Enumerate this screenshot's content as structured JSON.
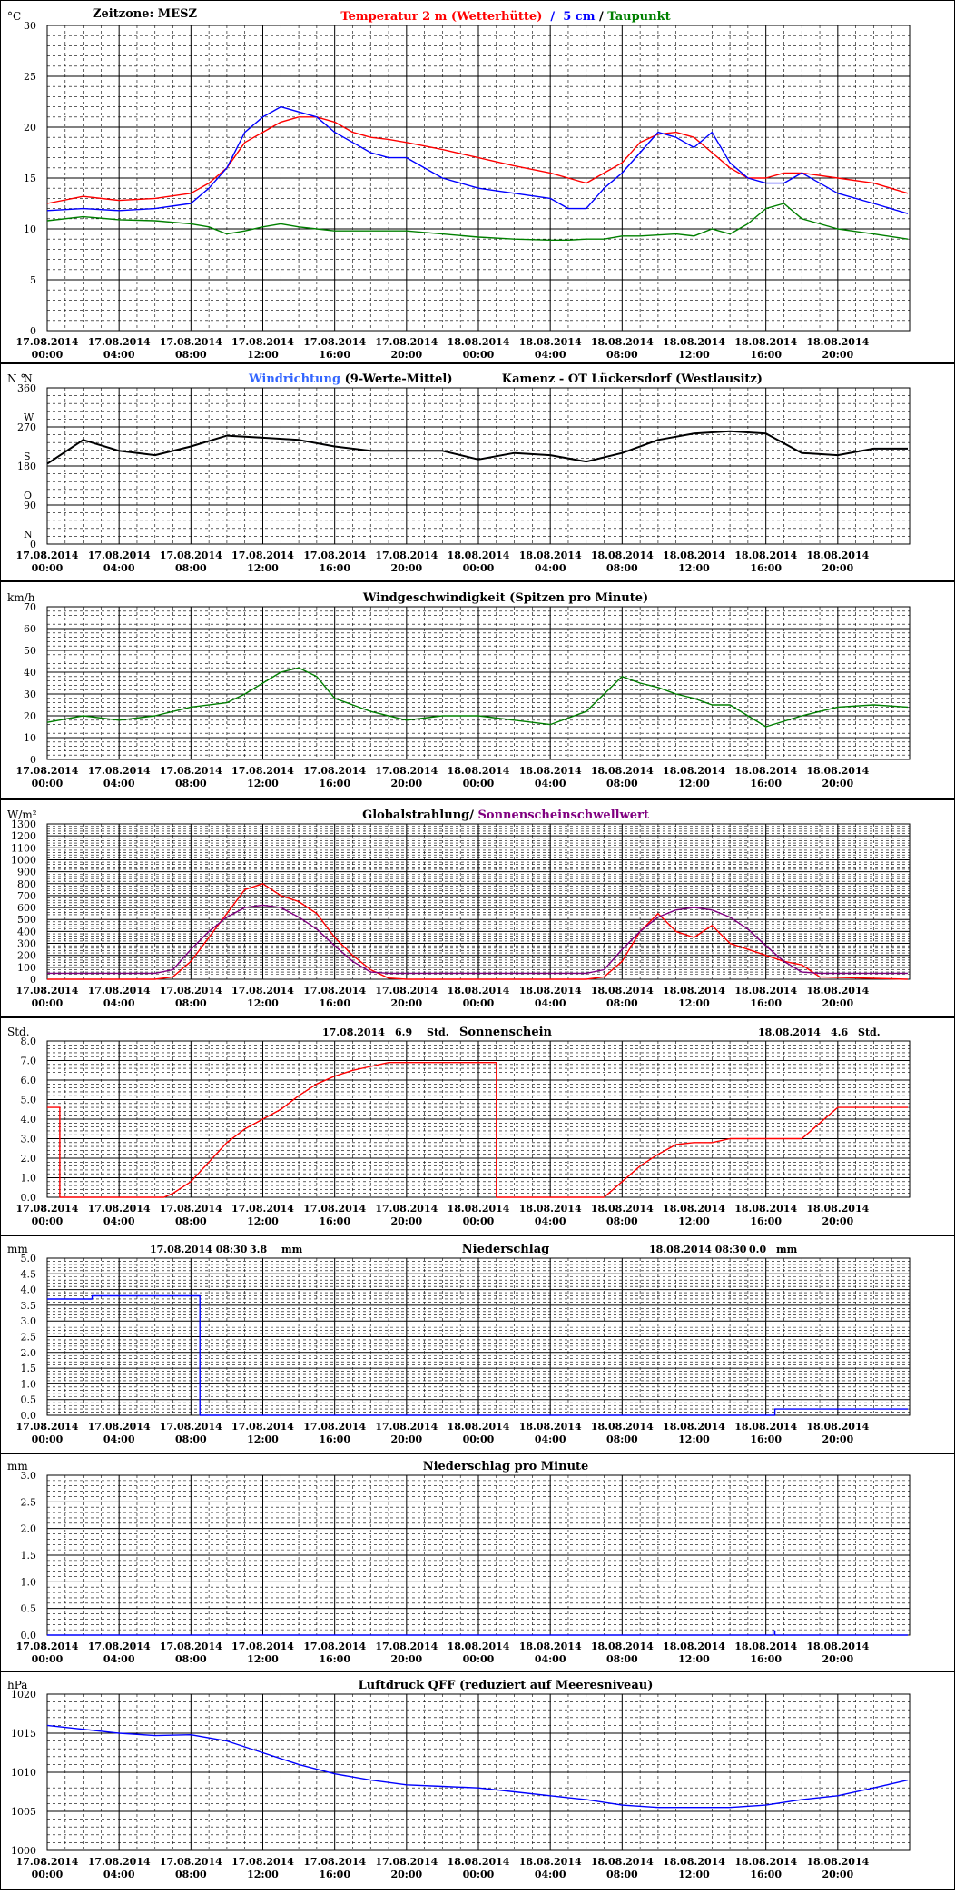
{
  "x_ticks": [
    {
      "date": "17.08.2014",
      "time": "00:00"
    },
    {
      "date": "17.08.2014",
      "time": "04:00"
    },
    {
      "date": "17.08.2014",
      "time": "08:00"
    },
    {
      "date": "17.08.2014",
      "time": "12:00"
    },
    {
      "date": "17.08.2014",
      "time": "16:00"
    },
    {
      "date": "17.08.2014",
      "time": "20:00"
    },
    {
      "date": "18.08.2014",
      "time": "00:00"
    },
    {
      "date": "18.08.2014",
      "time": "04:00"
    },
    {
      "date": "18.08.2014",
      "time": "08:00"
    },
    {
      "date": "18.08.2014",
      "time": "12:00"
    },
    {
      "date": "18.08.2014",
      "time": "16:00"
    },
    {
      "date": "18.08.2014",
      "time": "20:00"
    }
  ],
  "chart_data": [
    {
      "id": "temperature",
      "type": "line",
      "y_unit": "°C",
      "header_left": "Zeitzone: MESZ",
      "title_parts": [
        {
          "text": "Temperatur 2 m (Wetterhütte)",
          "color": "#ff0000"
        },
        {
          "text": "  /  ",
          "color": "#0000ff"
        },
        {
          "text": "5 cm",
          "color": "#0000ff"
        },
        {
          "text": " / ",
          "color": "#000000"
        },
        {
          "text": "Taupunkt",
          "color": "#008000"
        }
      ],
      "ylim": [
        0,
        30
      ],
      "y_ticks": [
        "0",
        "5",
        "10",
        "15",
        "20",
        "25",
        "30"
      ],
      "x_hours": [
        0,
        2,
        4,
        6,
        8,
        9,
        10,
        11,
        12,
        13,
        14,
        15,
        16,
        17,
        18,
        19,
        20,
        22,
        24,
        26,
        28,
        29,
        30,
        31,
        32,
        33,
        34,
        35,
        36,
        37,
        38,
        39,
        40,
        41,
        42,
        44,
        46,
        47.9
      ],
      "series": [
        {
          "name": "Temperatur 2 m (Wetterhütte)",
          "color": "#ff0000",
          "values": [
            12.5,
            13.2,
            12.8,
            13.0,
            13.5,
            14.5,
            16.0,
            18.5,
            19.5,
            20.5,
            21.0,
            21.0,
            20.5,
            19.5,
            19.0,
            18.8,
            18.5,
            17.8,
            17.0,
            16.2,
            15.5,
            15.0,
            14.5,
            15.5,
            16.5,
            18.5,
            19.3,
            19.5,
            19.0,
            17.5,
            16.0,
            15.0,
            15.0,
            15.5,
            15.5,
            15.0,
            14.5,
            13.5
          ]
        },
        {
          "name": "5 cm",
          "color": "#0000ff",
          "values": [
            11.8,
            12.0,
            11.8,
            12.0,
            12.5,
            14.0,
            16.0,
            19.5,
            21.0,
            22.0,
            21.5,
            21.0,
            19.5,
            18.5,
            17.5,
            17.0,
            17.0,
            15.0,
            14.0,
            13.5,
            13.0,
            12.0,
            12.0,
            14.0,
            15.5,
            17.5,
            19.5,
            19.0,
            18.0,
            19.5,
            16.5,
            15.0,
            14.5,
            14.5,
            15.5,
            13.5,
            12.5,
            11.5
          ]
        },
        {
          "name": "Taupunkt",
          "color": "#008000",
          "values": [
            10.8,
            11.2,
            10.9,
            10.8,
            10.5,
            10.2,
            9.5,
            9.8,
            10.2,
            10.5,
            10.2,
            10.0,
            9.8,
            9.8,
            9.8,
            9.8,
            9.8,
            9.5,
            9.2,
            9.0,
            8.9,
            8.9,
            9.0,
            9.0,
            9.3,
            9.3,
            9.4,
            9.5,
            9.3,
            10.0,
            9.5,
            10.5,
            12.0,
            12.5,
            11.0,
            10.0,
            9.5,
            9.0
          ]
        }
      ]
    },
    {
      "id": "wind_direction",
      "type": "line",
      "y_unit": "N °",
      "title_parts": [
        {
          "text": "Windrichtung",
          "color": "#3366ff"
        },
        {
          "text": " (9-Werte-Mittel)",
          "color": "#000000"
        },
        {
          "text": "            Kamenz - OT Lückersdorf (Westlausitz)",
          "color": "#000000"
        }
      ],
      "ylim": [
        0,
        360
      ],
      "y_ticks": [
        "0",
        "90",
        "180",
        "270",
        "360"
      ],
      "compass": [
        "N",
        "O",
        "S",
        "W",
        "N"
      ],
      "x_hours": [
        0,
        2,
        4,
        6,
        8,
        10,
        12,
        14,
        16,
        18,
        20,
        22,
        24,
        26,
        28,
        30,
        32,
        34,
        36,
        38,
        40,
        42,
        44,
        46,
        47.9
      ],
      "series": [
        {
          "name": "Windrichtung",
          "color": "#3366ff",
          "values": [
            185,
            240,
            215,
            205,
            225,
            250,
            245,
            240,
            225,
            215,
            215,
            215,
            195,
            210,
            205,
            190,
            210,
            240,
            255,
            260,
            255,
            210,
            205,
            220,
            220
          ]
        },
        {
          "name": "9-Werte-Mittel",
          "color": "#000000",
          "values": [
            185,
            240,
            215,
            205,
            225,
            250,
            245,
            240,
            225,
            215,
            215,
            215,
            195,
            210,
            205,
            190,
            210,
            240,
            255,
            260,
            255,
            210,
            205,
            220,
            220
          ]
        }
      ]
    },
    {
      "id": "wind_speed",
      "type": "line",
      "y_unit": "km/h",
      "title_parts": [
        {
          "text": "Windgeschwindigkeit (Spitzen pro Minute)",
          "color": "#000000"
        }
      ],
      "ylim": [
        0,
        70
      ],
      "y_ticks": [
        "0",
        "10",
        "20",
        "30",
        "40",
        "50",
        "60",
        "70"
      ],
      "x_hours": [
        0,
        2,
        4,
        6,
        8,
        10,
        11,
        12,
        13,
        14,
        15,
        16,
        17,
        18,
        20,
        22,
        24,
        26,
        28,
        30,
        31,
        32,
        33,
        34,
        35,
        36,
        37,
        38,
        40,
        42,
        44,
        46,
        47.9
      ],
      "series": [
        {
          "name": "Windgeschwindigkeit",
          "color": "#008000",
          "values": [
            17,
            20,
            18,
            20,
            24,
            26,
            30,
            35,
            40,
            42,
            38,
            28,
            25,
            22,
            18,
            20,
            20,
            18,
            16,
            22,
            30,
            38,
            35,
            33,
            30,
            28,
            25,
            25,
            15,
            20,
            24,
            25,
            24
          ]
        }
      ]
    },
    {
      "id": "global_radiation",
      "type": "line",
      "y_unit": "W/m²",
      "title_parts": [
        {
          "text": "Globalstrahlung/ ",
          "color": "#000000"
        },
        {
          "text": "Sonnenscheinschwellwert",
          "color": "#800080"
        }
      ],
      "ylim": [
        0,
        1300
      ],
      "y_ticks": [
        "0",
        "100",
        "200",
        "300",
        "400",
        "500",
        "600",
        "700",
        "800",
        "900",
        "1000",
        "1100",
        "1200",
        "1300"
      ],
      "x_hours": [
        0,
        6,
        7,
        8,
        9,
        10,
        11,
        12,
        13,
        14,
        15,
        16,
        17,
        18,
        19,
        20,
        30,
        31,
        32,
        33,
        34,
        35,
        36,
        37,
        38,
        39,
        40,
        41,
        42,
        43,
        47.9
      ],
      "series": [
        {
          "name": "Globalstrahlung",
          "color": "#ff0000",
          "values": [
            0,
            0,
            20,
            150,
            350,
            550,
            750,
            800,
            700,
            650,
            550,
            350,
            200,
            80,
            10,
            0,
            0,
            20,
            150,
            400,
            550,
            400,
            350,
            450,
            300,
            250,
            200,
            150,
            120,
            20,
            0
          ]
        },
        {
          "name": "Sonnenscheinschwellwert",
          "color": "#800080",
          "values": [
            50,
            50,
            80,
            250,
            400,
            520,
            600,
            620,
            600,
            520,
            420,
            280,
            150,
            60,
            50,
            50,
            50,
            80,
            250,
            400,
            520,
            580,
            600,
            580,
            520,
            420,
            280,
            150,
            60,
            50,
            50
          ]
        }
      ]
    },
    {
      "id": "sunshine",
      "type": "line",
      "y_unit": "Std.",
      "title_parts": [
        {
          "text": "Sonnenschein",
          "color": "#000000"
        }
      ],
      "annotations": [
        {
          "date": "17.08.2014",
          "value": "6.9",
          "unit": "Std."
        },
        {
          "date": "18.08.2014",
          "value": "4.6",
          "unit": "Std."
        }
      ],
      "ylim": [
        0,
        8
      ],
      "y_ticks": [
        "0.0",
        "1.0",
        "2.0",
        "3.0",
        "4.0",
        "5.0",
        "6.0",
        "7.0",
        "8.0"
      ],
      "x_hours": [
        0,
        0.7,
        0.7,
        6.5,
        7.0,
        8.0,
        9.0,
        10.0,
        11.0,
        12.0,
        13.0,
        14.0,
        15.0,
        16.0,
        17.0,
        18.0,
        19.0,
        20.0,
        24.0,
        25.0,
        25.0,
        31.0,
        32.0,
        33.0,
        34.0,
        35.0,
        36.0,
        37.0,
        38.0,
        39.0,
        40.0,
        41.0,
        42.0,
        43.0,
        44.0,
        47.9
      ],
      "series": [
        {
          "name": "Sonnenschein",
          "color": "#ff0000",
          "values": [
            4.6,
            4.6,
            0.0,
            0.0,
            0.2,
            0.8,
            1.8,
            2.8,
            3.5,
            4.0,
            4.5,
            5.2,
            5.8,
            6.2,
            6.5,
            6.7,
            6.9,
            6.9,
            6.9,
            6.9,
            0.0,
            0.0,
            0.8,
            1.6,
            2.2,
            2.7,
            2.8,
            2.8,
            3.0,
            3.0,
            3.0,
            3.0,
            3.0,
            3.8,
            4.6,
            4.6
          ]
        }
      ]
    },
    {
      "id": "precipitation",
      "type": "line",
      "y_unit": "mm",
      "title_parts": [
        {
          "text": "Niederschlag",
          "color": "#000000"
        }
      ],
      "annotations": [
        {
          "date": "17.08.2014 08:30",
          "value": "3.8",
          "unit": "mm"
        },
        {
          "date": "18.08.2014 08:30",
          "value": "0.0",
          "unit": "mm"
        }
      ],
      "ylim": [
        0,
        5
      ],
      "y_ticks": [
        "0.0",
        "0.5",
        "1.0",
        "1.5",
        "2.0",
        "2.5",
        "3.0",
        "3.5",
        "4.0",
        "4.5",
        "5.0"
      ],
      "x_hours": [
        0,
        2.5,
        2.5,
        8.5,
        8.5,
        32.5,
        40.0,
        40.5,
        40.5,
        47.9
      ],
      "series": [
        {
          "name": "Niederschlag",
          "color": "#0000ff",
          "values": [
            3.7,
            3.7,
            3.8,
            3.8,
            0.0,
            0.0,
            0.0,
            0.0,
            0.2,
            0.2
          ]
        }
      ]
    },
    {
      "id": "precipitation_per_minute",
      "type": "line",
      "y_unit": "mm",
      "title_parts": [
        {
          "text": "Niederschlag pro Minute",
          "color": "#000000"
        }
      ],
      "ylim": [
        0,
        3
      ],
      "y_ticks": [
        "0.0",
        "0.5",
        "1.0",
        "1.5",
        "2.0",
        "2.5",
        "3.0"
      ],
      "x_hours": [
        0,
        40.4,
        40.4,
        40.5,
        40.5,
        47.9
      ],
      "series": [
        {
          "name": "Niederschlag pro Minute",
          "color": "#0000ff",
          "values": [
            0,
            0,
            0.08,
            0.08,
            0,
            0
          ]
        }
      ]
    },
    {
      "id": "pressure",
      "type": "line",
      "y_unit": "hPa",
      "title_parts": [
        {
          "text": "Luftdruck QFF (reduziert auf Meeresniveau)",
          "color": "#000000"
        }
      ],
      "ylim": [
        1000,
        1020
      ],
      "y_ticks": [
        "1000",
        "1005",
        "1010",
        "1015",
        "1020"
      ],
      "x_hours": [
        0,
        2,
        4,
        6,
        8,
        10,
        12,
        14,
        16,
        18,
        20,
        22,
        24,
        26,
        28,
        30,
        32,
        34,
        36,
        38,
        40,
        42,
        44,
        46,
        47.9
      ],
      "series": [
        {
          "name": "Luftdruck QFF",
          "color": "#0000ff",
          "values": [
            1016.0,
            1015.5,
            1015.0,
            1014.7,
            1014.8,
            1014.0,
            1012.5,
            1011.0,
            1009.8,
            1009.0,
            1008.4,
            1008.2,
            1008.0,
            1007.5,
            1007.0,
            1006.5,
            1005.8,
            1005.5,
            1005.5,
            1005.5,
            1005.8,
            1006.5,
            1007.0,
            1008.0,
            1009.0
          ]
        }
      ]
    }
  ]
}
